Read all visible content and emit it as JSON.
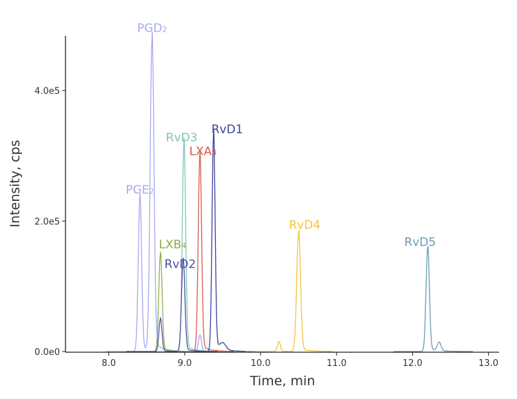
{
  "chart_data": {
    "type": "line",
    "title": "",
    "xlabel": "Time, min",
    "ylabel": "Intensity, cps",
    "xlim": [
      7.43,
      13.14
    ],
    "ylim": [
      0,
      484000
    ],
    "xticks": [
      8.0,
      9.0,
      10.0,
      11.0,
      12.0,
      13.0
    ],
    "xtick_labels": [
      "8.0",
      "9.0",
      "10.0",
      "11.0",
      "12.0",
      "13.0"
    ],
    "yticks": [
      0,
      200000,
      400000
    ],
    "ytick_labels": [
      "0.0e0",
      "2.0e5",
      "4.0e5"
    ],
    "grid": false,
    "series": [
      {
        "name": "PGD2",
        "label_main": "PGD",
        "label_sub": "2",
        "color": "#a4a9f2",
        "peaks": [
          [
            8.57,
            476000,
            0.025
          ],
          [
            8.41,
            236000,
            0.022
          ],
          [
            9.2,
            25000,
            0.02
          ]
        ]
      },
      {
        "name": "PGE2",
        "label_main": "PGE",
        "label_sub": "2",
        "color": "#a4a9f2",
        "peaks": []
      },
      {
        "name": "RvD3",
        "label_main": "RvD3",
        "label_sub": "",
        "color": "#7fc6b8",
        "peaks": [
          [
            8.99,
            319000,
            0.022
          ]
        ]
      },
      {
        "name": "LXA4",
        "label_main": "LXA",
        "label_sub": "4",
        "color": "#d95a4c",
        "peaks": [
          [
            9.2,
            300000,
            0.022
          ]
        ]
      },
      {
        "name": "RvD1",
        "label_main": "RvD1",
        "label_sub": "",
        "color": "#3b3f9c",
        "peaks": [
          [
            9.38,
            332000,
            0.02
          ],
          [
            9.5,
            10000,
            0.04
          ]
        ]
      },
      {
        "name": "LXB4",
        "label_main": "LXB",
        "label_sub": "4",
        "color": "#8bb04c",
        "peaks": [
          [
            8.68,
            149000,
            0.022
          ]
        ]
      },
      {
        "name": "RvD2",
        "label_main": "RvD2",
        "label_sub": "",
        "color": "#4a4f9f",
        "peaks": [
          [
            8.98,
            140000,
            0.022
          ],
          [
            8.68,
            50000,
            0.02
          ]
        ]
      },
      {
        "name": "RvD4",
        "label_main": "RvD4",
        "label_sub": "",
        "color": "#f5c33c",
        "peaks": [
          [
            10.5,
            182000,
            0.025
          ],
          [
            10.24,
            15000,
            0.02
          ]
        ]
      },
      {
        "name": "RvD5",
        "label_main": "RvD5",
        "label_sub": "",
        "color": "#6b9bb6",
        "peaks": [
          [
            12.2,
            158000,
            0.022
          ],
          [
            12.35,
            13000,
            0.025
          ]
        ]
      }
    ],
    "annotations": [
      {
        "series": "PGD2",
        "x": 8.57,
        "y": 490000
      },
      {
        "series": "PGE2",
        "x": 8.41,
        "y": 242000
      },
      {
        "series": "RvD3",
        "x": 8.96,
        "y": 322000
      },
      {
        "series": "LXA4",
        "x": 9.24,
        "y": 301000
      },
      {
        "series": "RvD1",
        "x": 9.56,
        "y": 335000
      },
      {
        "series": "LXB4",
        "x": 8.84,
        "y": 158000
      },
      {
        "series": "RvD2",
        "x": 8.94,
        "y": 128000
      },
      {
        "series": "RvD4",
        "x": 10.58,
        "y": 188000
      },
      {
        "series": "RvD5",
        "x": 12.1,
        "y": 162000
      }
    ]
  }
}
